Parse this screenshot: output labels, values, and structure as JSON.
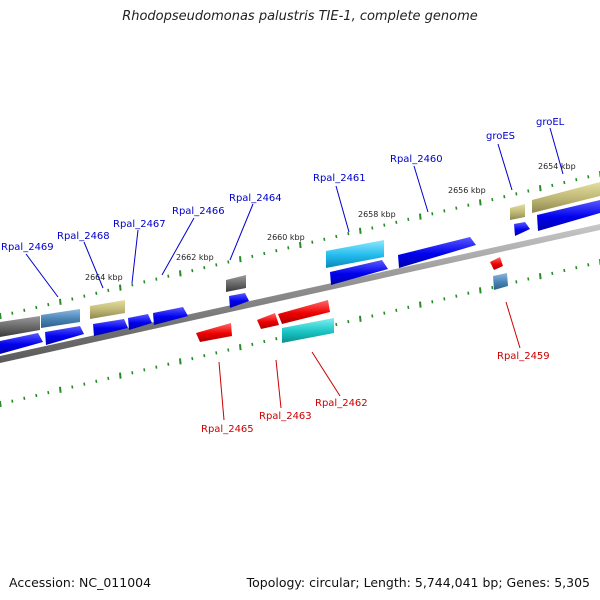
{
  "title": "Rhodopseudomonas palustris TIE-1, complete genome",
  "footer": {
    "accession": "Accession: NC_011004",
    "topology": "Topology: circular; Length: 5,744,041 bp; Genes: 5,305"
  },
  "colors": {
    "forward_label": "#0000cc",
    "reverse_label": "#cc0000",
    "tick": "#2a8a2a",
    "backbone": "#909090"
  },
  "scale_labels": [
    "2654 kbp",
    "2656 kbp",
    "2658 kbp",
    "2660 kbp",
    "2662 kbp",
    "2664 kbp"
  ],
  "genes_forward": [
    "Rpal_2469",
    "Rpal_2468",
    "Rpal_2467",
    "Rpal_2466",
    "Rpal_2464",
    "Rpal_2461",
    "Rpal_2460",
    "groES",
    "groEL"
  ],
  "genes_reverse": [
    "Rpal_2465",
    "Rpal_2463",
    "Rpal_2462",
    "Rpal_2459"
  ]
}
